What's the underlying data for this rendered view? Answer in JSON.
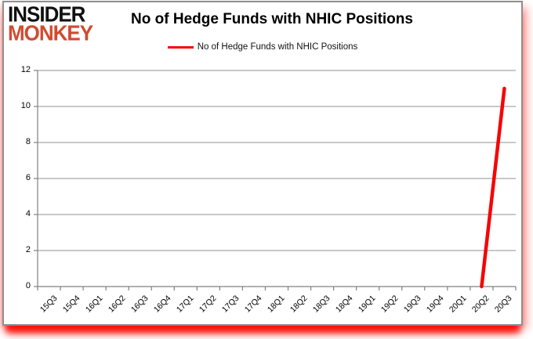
{
  "logo": {
    "line1": "INSIDER",
    "line2": "MONKEY"
  },
  "header": {
    "title": "No of Hedge Funds with NHIC Positions"
  },
  "legend": {
    "label": "No of Hedge Funds with NHIC Positions"
  },
  "chart_data": {
    "type": "line",
    "title": "No of Hedge Funds with NHIC Positions",
    "categories": [
      "15Q3",
      "15Q4",
      "16Q1",
      "16Q2",
      "16Q3",
      "16Q4",
      "17Q1",
      "17Q2",
      "17Q3",
      "17Q4",
      "18Q1",
      "18Q2",
      "18Q3",
      "18Q4",
      "19Q1",
      "19Q2",
      "19Q3",
      "19Q4",
      "20Q1",
      "20Q2",
      "20Q3"
    ],
    "series": [
      {
        "name": "No of Hedge Funds with NHIC Positions",
        "values": [
          null,
          null,
          null,
          null,
          null,
          null,
          null,
          null,
          null,
          null,
          null,
          null,
          null,
          null,
          null,
          null,
          null,
          null,
          null,
          0,
          11
        ]
      }
    ],
    "xlabel": "",
    "ylabel": "",
    "ylim": [
      0,
      12
    ],
    "y_ticks": [
      0,
      2,
      4,
      6,
      8,
      10,
      12
    ],
    "grid": true,
    "legend_position": "top"
  },
  "colors": {
    "line": "#f40606",
    "logo_red": "#d14a30",
    "grid": "#a6a6a6",
    "axis": "#808080",
    "frame_border": "#8f8f8f",
    "glow_red": "#f80c06",
    "text": "#000000",
    "background": "#ffffff"
  }
}
